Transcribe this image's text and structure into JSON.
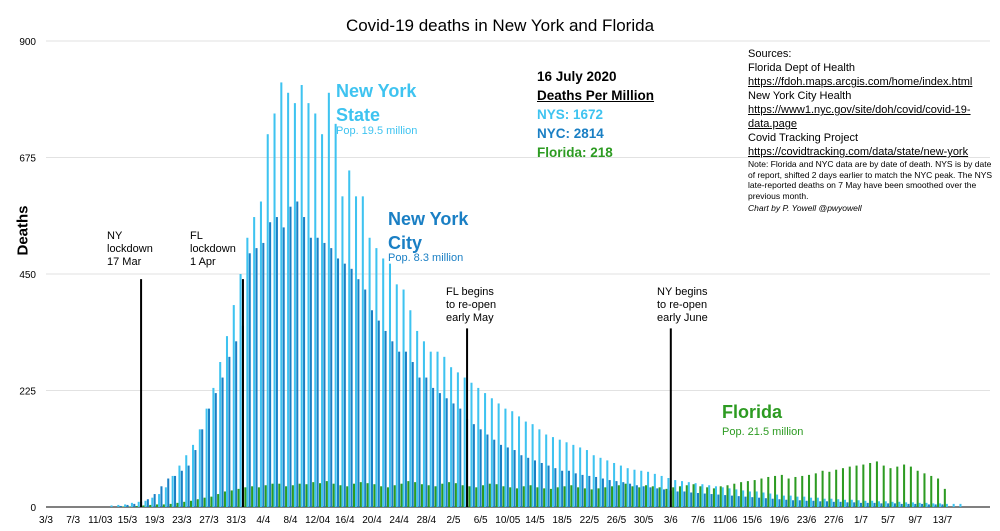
{
  "chart_data": {
    "type": "bar",
    "title": "Covid-19 deaths in New York and Florida",
    "ylabel": "Deaths",
    "xlabel": "",
    "ylim": [
      0,
      900
    ],
    "yticks": [
      0,
      225,
      450,
      675,
      900
    ],
    "grid": true,
    "x_tick_labels": [
      "3/3",
      "7/3",
      "11/03",
      "15/3",
      "19/3",
      "23/3",
      "27/3",
      "31/3",
      "4/4",
      "8/4",
      "12/04",
      "16/4",
      "20/4",
      "24/4",
      "28/4",
      "2/5",
      "6/5",
      "10/05",
      "14/5",
      "18/5",
      "22/5",
      "26/5",
      "30/5",
      "3/6",
      "7/6",
      "11/06",
      "15/6",
      "19/6",
      "23/6",
      "27/6",
      "1/7",
      "5/7",
      "9/7",
      "13/7"
    ],
    "series_colors": {
      "nys": "#3ec3f0",
      "nyc": "#1a7fc4",
      "florida": "#2d9b22"
    },
    "series": [
      {
        "name": "New York State",
        "key": "nys",
        "start": "2020-03-13",
        "values": [
          3,
          4,
          5,
          8,
          10,
          12,
          18,
          25,
          38,
          60,
          80,
          100,
          120,
          150,
          190,
          230,
          280,
          330,
          390,
          450,
          520,
          560,
          590,
          720,
          760,
          820,
          800,
          780,
          815,
          780,
          760,
          720,
          800,
          740,
          600,
          650,
          600,
          600,
          520,
          500,
          480,
          470,
          430,
          420,
          380,
          340,
          320,
          300,
          300,
          290,
          270,
          260,
          250,
          240,
          230,
          220,
          210,
          200,
          190,
          185,
          175,
          165,
          160,
          150,
          140,
          135,
          130,
          125,
          120,
          115,
          110,
          100,
          95,
          90,
          85,
          80,
          75,
          72,
          70,
          68,
          64,
          60,
          56,
          52,
          50,
          48,
          46,
          44,
          42,
          40,
          38,
          36,
          34,
          32,
          30,
          30,
          28,
          26,
          24,
          22,
          22,
          20,
          20,
          18,
          18,
          16,
          16,
          15,
          14,
          14,
          13,
          12,
          12,
          11,
          11,
          10,
          10,
          9,
          9,
          8,
          8,
          7,
          7,
          6,
          6,
          6
        ]
      },
      {
        "name": "New York City",
        "key": "nyc",
        "start": "2020-03-14",
        "values": [
          2,
          4,
          6,
          10,
          15,
          25,
          40,
          55,
          60,
          70,
          80,
          110,
          150,
          190,
          220,
          250,
          290,
          320,
          350,
          490,
          500,
          510,
          550,
          560,
          540,
          580,
          590,
          560,
          520,
          520,
          510,
          500,
          480,
          470,
          460,
          440,
          420,
          380,
          360,
          340,
          320,
          300,
          300,
          280,
          250,
          250,
          230,
          220,
          210,
          200,
          190,
          170,
          160,
          150,
          140,
          130,
          120,
          115,
          110,
          100,
          95,
          90,
          85,
          80,
          75,
          70,
          70,
          65,
          62,
          60,
          58,
          55,
          52,
          50,
          48,
          45,
          42,
          40,
          38,
          36,
          34,
          32,
          30,
          30,
          28,
          27,
          26,
          25,
          24,
          23,
          22,
          21,
          20,
          19,
          18,
          17,
          16,
          15,
          14,
          13,
          13,
          12,
          12,
          11,
          11,
          10,
          10,
          9,
          9,
          8,
          8,
          8,
          7,
          7,
          7,
          6,
          6,
          6,
          6,
          5,
          5,
          5
        ]
      },
      {
        "name": "Florida",
        "key": "florida",
        "start": "2020-03-14",
        "values": [
          1,
          1,
          2,
          3,
          4,
          5,
          5,
          6,
          8,
          10,
          12,
          15,
          18,
          20,
          25,
          30,
          32,
          35,
          38,
          40,
          38,
          42,
          45,
          45,
          40,
          42,
          45,
          44,
          48,
          46,
          50,
          45,
          42,
          40,
          45,
          48,
          46,
          44,
          40,
          38,
          42,
          45,
          50,
          48,
          44,
          42,
          40,
          45,
          48,
          46,
          42,
          40,
          38,
          42,
          45,
          44,
          40,
          38,
          36,
          40,
          42,
          38,
          36,
          35,
          38,
          40,
          42,
          38,
          36,
          34,
          36,
          38,
          40,
          42,
          45,
          40,
          38,
          42,
          40,
          38,
          35,
          38,
          40,
          42,
          44,
          40,
          38,
          36,
          40,
          42,
          45,
          48,
          50,
          52,
          55,
          58,
          60,
          62,
          55,
          58,
          60,
          62,
          65,
          70,
          68,
          72,
          75,
          78,
          80,
          82,
          85,
          88,
          80,
          75,
          78,
          82,
          78,
          70,
          65,
          60,
          55,
          35
        ]
      }
    ],
    "annotations": {
      "nys_label": "New York\nState",
      "nys_pop": "Pop. 19.5 million",
      "nyc_label": "New York\nCity",
      "nyc_pop": "Pop. 8.3 million",
      "fl_label": "Florida",
      "fl_pop": "Pop. 21.5 million"
    },
    "events": [
      {
        "date": "2020-03-17",
        "label": "NY\nlockdown\n17 Mar",
        "value": 440
      },
      {
        "date": "2020-04-01",
        "label": "FL\nlockdown\n1 Apr",
        "value": 440
      },
      {
        "date": "2020-05-04",
        "label": "FL begins\nto re-open\nearly May",
        "value": 345
      },
      {
        "date": "2020-06-03",
        "label": "NY begins\nto re-open\nearly June",
        "value": 345
      }
    ],
    "deaths_per_million": {
      "date": "16 July 2020",
      "heading": "Deaths Per Million",
      "nys": "NYS: 1672",
      "nyc": "NYC: 2814",
      "florida": "Florida: 218"
    }
  },
  "sources": {
    "heading": "Sources:",
    "items": [
      "Florida Dept of Health",
      "https://fdoh.maps.arcgis.com/home/index.html",
      "New York City Health",
      "https://www1.nyc.gov/site/doh/covid/covid-19-data.page",
      "Covid Tracking Project",
      "https://covidtracking.com/data/state/new-york"
    ],
    "note": "Note:  Florida and NYC data are by date of death. NYS is by date of report, shifted 2 days earlier to match the NYC peak. The NYS  late-reported deaths on 7 May have been smoothed over the previous month.",
    "credit": "Chart by P. Yowell @pwyowell"
  }
}
